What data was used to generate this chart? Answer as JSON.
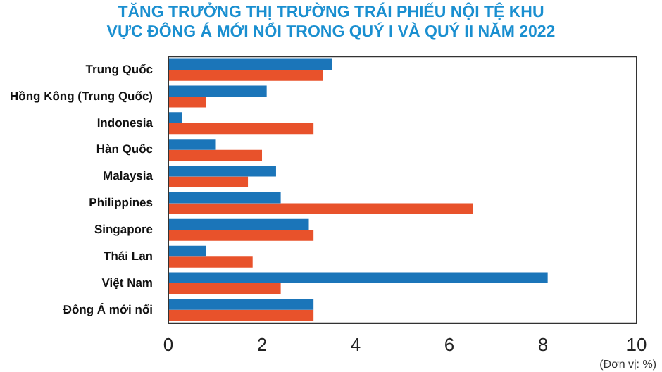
{
  "chart_data": {
    "type": "bar",
    "orientation": "horizontal",
    "title": "TĂNG TRƯỞNG THỊ TRƯỜNG TRÁI PHIẾU NỘI TỆ KHU VỰC ĐÔNG Á MỚI NỔI TRONG QUÝ I VÀ QUÝ II NĂM 2022",
    "categories": [
      "Trung Quốc",
      "Hồng Kông (Trung Quốc)",
      "Indonesia",
      "Hàn Quốc",
      "Malaysia",
      "Philippines",
      "Singapore",
      "Thái Lan",
      "Việt Nam",
      "Đông Á mới nổi"
    ],
    "series": [
      {
        "color": "#1b75b9",
        "values": [
          3.5,
          2.1,
          0.3,
          1.0,
          2.3,
          2.4,
          3.0,
          0.8,
          8.1,
          3.1
        ]
      },
      {
        "color": "#e8522b",
        "values": [
          3.3,
          0.8,
          3.1,
          2.0,
          1.7,
          6.5,
          3.1,
          1.8,
          2.4,
          3.1
        ]
      }
    ],
    "xlim": [
      0,
      10
    ],
    "xticks": [
      0,
      2,
      4,
      6,
      8,
      10
    ],
    "grid": false,
    "legend": false,
    "annotations": [
      "(Đơn vị: %)"
    ]
  }
}
